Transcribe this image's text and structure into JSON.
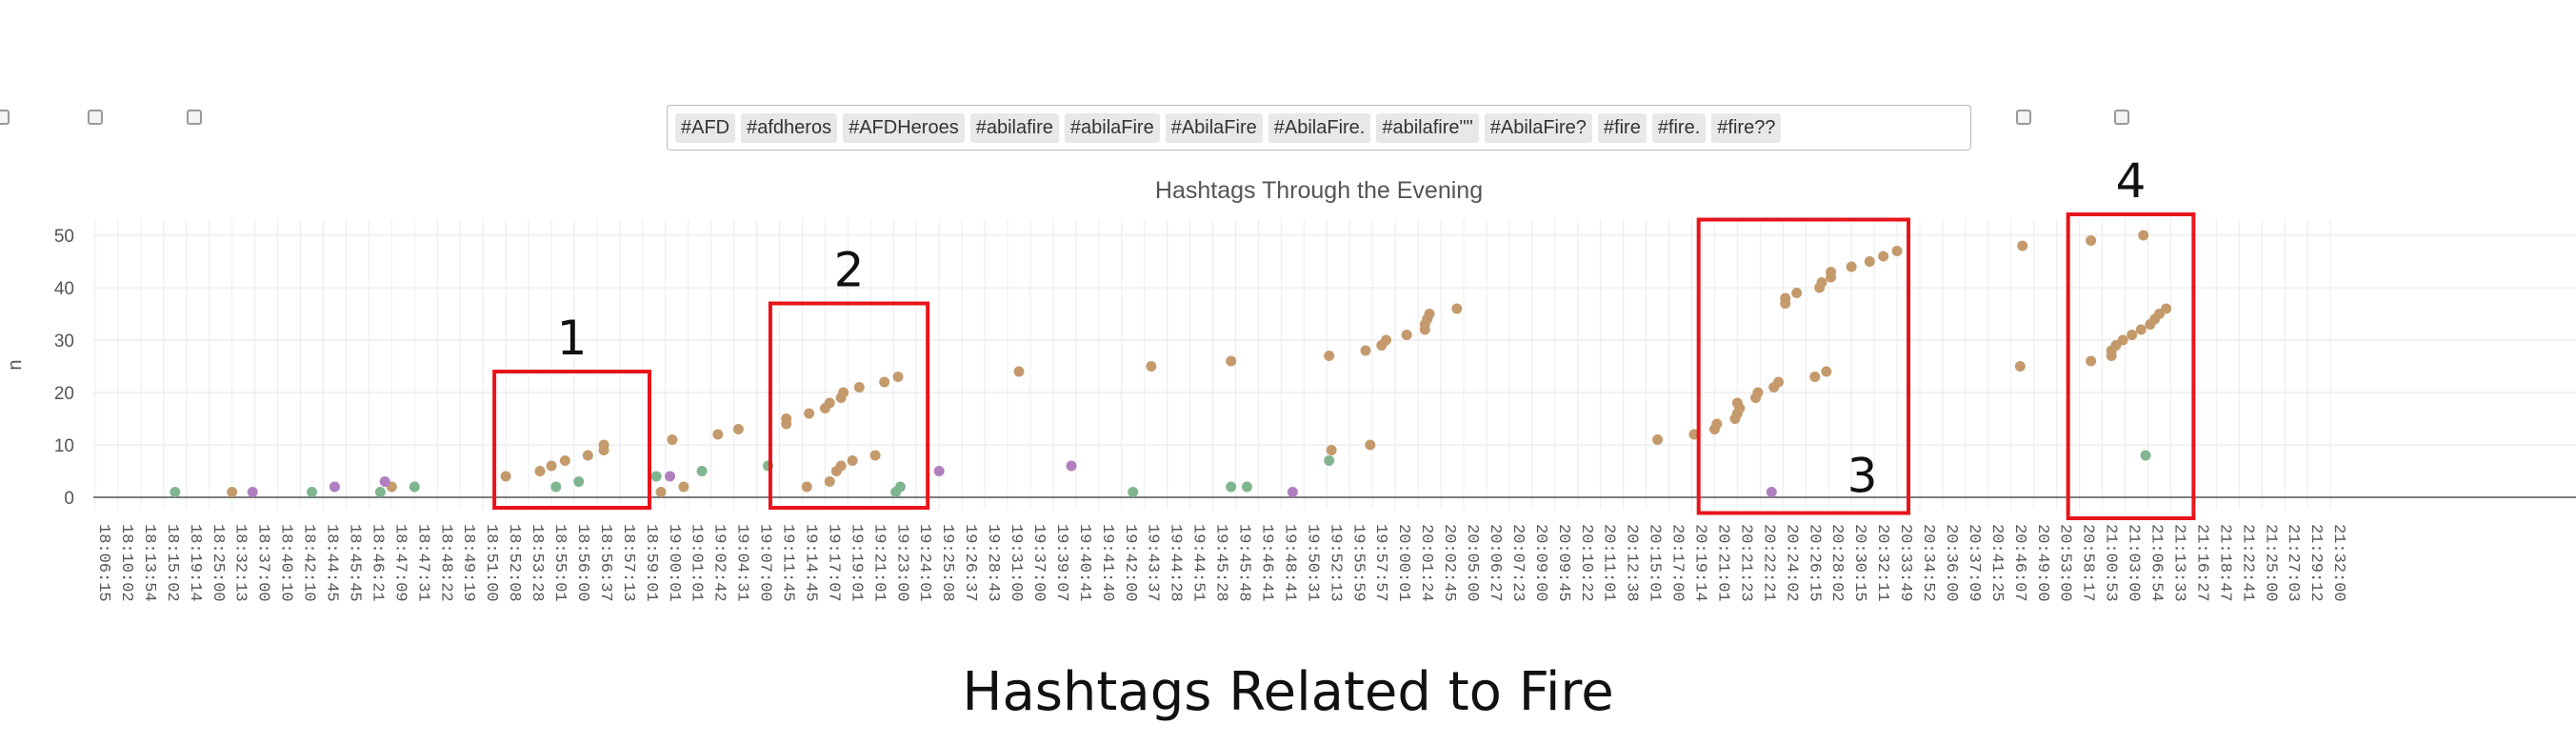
{
  "filters": {
    "checkbox_count": 5,
    "hashtags": [
      "#AFD",
      "#afdheros",
      "#AFDHeroes",
      "#abilafire",
      "#abilaFire",
      "#AbilaFire",
      "#AbilaFire.",
      "#abilafire\"\"",
      "#AbilaFire?",
      "#fire",
      "#fire.",
      "#fire??"
    ]
  },
  "caption": "Hashtags Related to Fire",
  "colors": {
    "tan": "#c49a6c",
    "green": "#7fb58f",
    "purple": "#b17fc0",
    "highlight": "#e8141b"
  },
  "chart_data": {
    "type": "scatter",
    "title": "Hashtags Through the Evening",
    "ylabel": "n",
    "xlabel": "",
    "ylim": [
      -2,
      52
    ],
    "yticks": [
      0,
      10,
      20,
      30,
      40,
      50
    ],
    "grid": true,
    "x_categories": [
      "18:06:15",
      "18:10:02",
      "18:13:54",
      "18:15:02",
      "18:19:14",
      "18:25:00",
      "18:32:13",
      "18:37:00",
      "18:40:10",
      "18:42:10",
      "18:44:45",
      "18:45:45",
      "18:46:21",
      "18:47:09",
      "18:47:31",
      "18:48:22",
      "18:49:19",
      "18:51:00",
      "18:52:08",
      "18:53:28",
      "18:55:01",
      "18:56:00",
      "18:56:37",
      "18:57:13",
      "18:59:01",
      "19:00:01",
      "19:01:01",
      "19:02:42",
      "19:04:31",
      "19:07:00",
      "19:11:45",
      "19:14:45",
      "19:17:07",
      "19:19:01",
      "19:21:01",
      "19:23:00",
      "19:24:01",
      "19:25:08",
      "19:26:37",
      "19:28:43",
      "19:31:00",
      "19:37:00",
      "19:39:07",
      "19:40:41",
      "19:41:40",
      "19:42:00",
      "19:43:37",
      "19:44:28",
      "19:44:51",
      "19:45:28",
      "19:45:48",
      "19:46:41",
      "19:48:41",
      "19:50:31",
      "19:52:13",
      "19:55:59",
      "19:57:57",
      "20:00:01",
      "20:01:24",
      "20:02:45",
      "20:05:00",
      "20:06:27",
      "20:07:23",
      "20:09:00",
      "20:09:45",
      "20:10:22",
      "20:11:01",
      "20:12:38",
      "20:15:01",
      "20:17:00",
      "20:19:14",
      "20:21:01",
      "20:21:23",
      "20:22:21",
      "20:24:02",
      "20:26:15",
      "20:28:02",
      "20:30:15",
      "20:32:11",
      "20:33:49",
      "20:34:52",
      "20:36:00",
      "20:37:09",
      "20:41:25",
      "20:46:07",
      "20:49:00",
      "20:53:00",
      "20:58:17",
      "21:00:53",
      "21:03:00",
      "21:06:54",
      "21:13:33",
      "21:16:27",
      "21:18:47",
      "21:22:41",
      "21:25:00",
      "21:27:03",
      "21:29:12",
      "21:32:00"
    ],
    "series": [
      {
        "color": "tan",
        "points": [
          [
            6,
            1
          ],
          [
            13,
            2
          ],
          [
            18,
            4
          ],
          [
            19.5,
            5
          ],
          [
            20,
            6
          ],
          [
            20.6,
            7
          ],
          [
            21.6,
            8
          ],
          [
            22.3,
            9
          ],
          [
            22.3,
            10
          ],
          [
            24.8,
            1
          ],
          [
            25.3,
            11
          ],
          [
            25.8,
            2
          ],
          [
            27.3,
            12
          ],
          [
            28.2,
            13
          ],
          [
            30.3,
            15
          ],
          [
            30.3,
            14
          ],
          [
            31.3,
            16
          ],
          [
            31.2,
            2
          ],
          [
            32,
            17
          ],
          [
            32.2,
            18
          ],
          [
            32.2,
            3
          ],
          [
            32.5,
            5
          ],
          [
            32.7,
            19
          ],
          [
            32.8,
            20
          ],
          [
            32.7,
            6
          ],
          [
            33.2,
            7
          ],
          [
            33.5,
            21
          ],
          [
            34.2,
            8
          ],
          [
            34.6,
            22
          ],
          [
            35.2,
            23
          ],
          [
            40.5,
            24
          ],
          [
            46.3,
            25
          ],
          [
            49.8,
            26
          ],
          [
            54.1,
            27
          ],
          [
            54.2,
            9
          ],
          [
            55.7,
            28
          ],
          [
            55.9,
            10
          ],
          [
            56.4,
            29
          ],
          [
            56.6,
            30
          ],
          [
            57.5,
            31
          ],
          [
            58.3,
            32
          ],
          [
            58.3,
            33
          ],
          [
            58.4,
            34
          ],
          [
            58.5,
            35
          ],
          [
            59.7,
            36
          ],
          [
            68.5,
            11
          ],
          [
            70.1,
            12
          ],
          [
            71,
            13
          ],
          [
            71.1,
            14
          ],
          [
            71.9,
            15
          ],
          [
            72,
            16
          ],
          [
            72.1,
            17
          ],
          [
            72,
            18
          ],
          [
            72.8,
            19
          ],
          [
            72.9,
            20
          ],
          [
            73.6,
            21
          ],
          [
            73.8,
            22
          ],
          [
            74.1,
            37
          ],
          [
            74.1,
            38
          ],
          [
            74.6,
            39
          ],
          [
            75.6,
            40
          ],
          [
            75.4,
            23
          ],
          [
            75.7,
            41
          ],
          [
            75.9,
            24
          ],
          [
            76.1,
            42
          ],
          [
            76.1,
            43
          ],
          [
            77,
            44
          ],
          [
            77.8,
            45
          ],
          [
            78.4,
            46
          ],
          [
            79,
            47
          ],
          [
            84.5,
            48
          ],
          [
            84.4,
            25
          ],
          [
            87.5,
            49
          ],
          [
            87.5,
            26
          ],
          [
            88.4,
            27
          ],
          [
            88.4,
            28
          ],
          [
            88.6,
            29
          ],
          [
            88.9,
            30
          ],
          [
            89.3,
            31
          ],
          [
            89.7,
            32
          ],
          [
            90.1,
            33
          ],
          [
            90.3,
            34
          ],
          [
            90.5,
            35
          ],
          [
            90.8,
            36
          ],
          [
            89.8,
            50
          ]
        ]
      },
      {
        "color": "green",
        "points": [
          [
            3.5,
            1
          ],
          [
            9.5,
            1
          ],
          [
            12.5,
            1
          ],
          [
            14,
            2
          ],
          [
            20.2,
            2
          ],
          [
            21.2,
            3
          ],
          [
            24.6,
            4
          ],
          [
            26.6,
            5
          ],
          [
            29.5,
            6
          ],
          [
            35.1,
            1
          ],
          [
            35.3,
            2
          ],
          [
            45.5,
            1
          ],
          [
            49.8,
            2
          ],
          [
            50.5,
            2
          ],
          [
            54.1,
            7
          ],
          [
            89.9,
            8
          ]
        ]
      },
      {
        "color": "purple",
        "points": [
          [
            6.9,
            1
          ],
          [
            10.5,
            2
          ],
          [
            12.7,
            3
          ],
          [
            25.2,
            4
          ],
          [
            37,
            5
          ],
          [
            42.8,
            6
          ],
          [
            52.5,
            1
          ],
          [
            73.5,
            1
          ]
        ]
      }
    ],
    "annotations": [
      {
        "label": "1",
        "x_range": [
          17.5,
          24.3
        ],
        "y_range": [
          -2,
          24
        ]
      },
      {
        "label": "2",
        "x_range": [
          29.6,
          36.5
        ],
        "y_range": [
          -2,
          37
        ]
      },
      {
        "label": "3",
        "x_range": [
          70.3,
          79.5
        ],
        "y_range": [
          -3,
          53
        ]
      },
      {
        "label": "4",
        "x_range": [
          86.5,
          92
        ],
        "y_range": [
          -4,
          54
        ]
      }
    ]
  }
}
